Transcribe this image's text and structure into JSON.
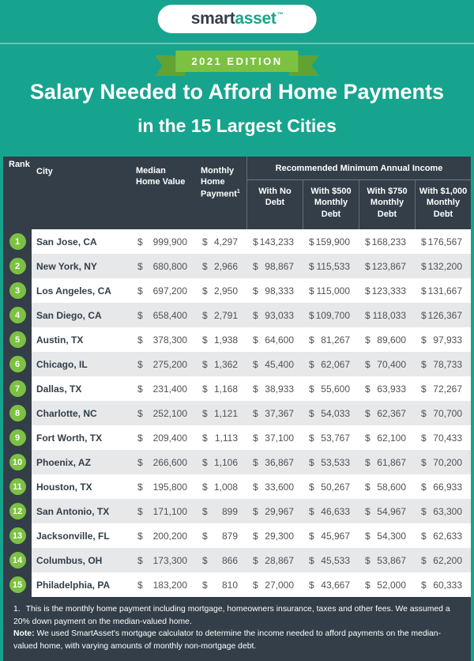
{
  "brand": {
    "smart": "smart",
    "asset": "asset",
    "trademark": "™"
  },
  "edition_badge": "2021 EDITION",
  "title": {
    "line1": "Salary Needed to Afford Home Payments",
    "line2": "in the 15 Largest Cities"
  },
  "table": {
    "currency_symbol": "$",
    "headers": {
      "rank": "Rank",
      "city": "City",
      "median_home_value": "Median Home Value",
      "monthly_home_payment": "Monthly Home Payment",
      "footnote_marker": "1",
      "income_group": "Recommended Minimum Annual Income",
      "sub": [
        "With No Debt",
        "With $500 Monthly Debt",
        "With $750 Monthly Debt",
        "With $1,000 Monthly Debt"
      ]
    },
    "rows": [
      {
        "rank": "1",
        "city": "San Jose, CA",
        "median": "999,900",
        "payment": "4,297",
        "no_debt": "143,233",
        "debt_500": "159,900",
        "debt_750": "168,233",
        "debt_1000": "176,567"
      },
      {
        "rank": "2",
        "city": "New York, NY",
        "median": "680,800",
        "payment": "2,966",
        "no_debt": "98,867",
        "debt_500": "115,533",
        "debt_750": "123,867",
        "debt_1000": "132,200"
      },
      {
        "rank": "3",
        "city": "Los Angeles, CA",
        "median": "697,200",
        "payment": "2,950",
        "no_debt": "98,333",
        "debt_500": "115,000",
        "debt_750": "123,333",
        "debt_1000": "131,667"
      },
      {
        "rank": "4",
        "city": "San Diego, CA",
        "median": "658,400",
        "payment": "2,791",
        "no_debt": "93,033",
        "debt_500": "109,700",
        "debt_750": "118,033",
        "debt_1000": "126,367"
      },
      {
        "rank": "5",
        "city": "Austin, TX",
        "median": "378,300",
        "payment": "1,938",
        "no_debt": "64,600",
        "debt_500": "81,267",
        "debt_750": "89,600",
        "debt_1000": "97,933"
      },
      {
        "rank": "6",
        "city": "Chicago, IL",
        "median": "275,200",
        "payment": "1,362",
        "no_debt": "45,400",
        "debt_500": "62,067",
        "debt_750": "70,400",
        "debt_1000": "78,733"
      },
      {
        "rank": "7",
        "city": "Dallas, TX",
        "median": "231,400",
        "payment": "1,168",
        "no_debt": "38,933",
        "debt_500": "55,600",
        "debt_750": "63,933",
        "debt_1000": "72,267"
      },
      {
        "rank": "8",
        "city": "Charlotte, NC",
        "median": "252,100",
        "payment": "1,121",
        "no_debt": "37,367",
        "debt_500": "54,033",
        "debt_750": "62,367",
        "debt_1000": "70,700"
      },
      {
        "rank": "9",
        "city": "Fort Worth, TX",
        "median": "209,400",
        "payment": "1,113",
        "no_debt": "37,100",
        "debt_500": "53,767",
        "debt_750": "62,100",
        "debt_1000": "70,433"
      },
      {
        "rank": "10",
        "city": "Phoenix, AZ",
        "median": "266,600",
        "payment": "1,106",
        "no_debt": "36,867",
        "debt_500": "53,533",
        "debt_750": "61,867",
        "debt_1000": "70,200"
      },
      {
        "rank": "11",
        "city": "Houston, TX",
        "median": "195,800",
        "payment": "1,008",
        "no_debt": "33,600",
        "debt_500": "50,267",
        "debt_750": "58,600",
        "debt_1000": "66,933"
      },
      {
        "rank": "12",
        "city": "San Antonio, TX",
        "median": "171,100",
        "payment": "899",
        "no_debt": "29,967",
        "debt_500": "46,633",
        "debt_750": "54,967",
        "debt_1000": "63,300"
      },
      {
        "rank": "13",
        "city": "Jacksonville, FL",
        "median": "200,200",
        "payment": "879",
        "no_debt": "29,300",
        "debt_500": "45,967",
        "debt_750": "54,300",
        "debt_1000": "62,633"
      },
      {
        "rank": "14",
        "city": "Columbus, OH",
        "median": "173,300",
        "payment": "866",
        "no_debt": "28,867",
        "debt_500": "45,533",
        "debt_750": "53,867",
        "debt_1000": "62,200"
      },
      {
        "rank": "15",
        "city": "Philadelphia, PA",
        "median": "183,200",
        "payment": "810",
        "no_debt": "27,000",
        "debt_500": "43,667",
        "debt_750": "52,000",
        "debt_1000": "60,333"
      }
    ]
  },
  "footnotes": {
    "note1_num": "1.",
    "note1_text": "This is the monthly home payment including mortgage, homeowners insurance, taxes and other fees. We assumed a 20% down payment on the median-valued home.",
    "note2_label": "Note:",
    "note2_text": "We used SmartAsset's mortgage calculator to determine the income needed to afford payments on the median-valued home, with varying amounts of monthly non-mortgage debt."
  },
  "colors": {
    "background_teal": "#17a48e",
    "header_navy": "#333e48",
    "accent_green": "#7cc142",
    "ribbon_dark_green": "#61a233",
    "row_alt_gray": "#e7e8ea"
  },
  "chart_data": {
    "type": "table",
    "title": "Salary Needed to Afford Home Payments in the 15 Largest Cities",
    "subtitle": "2021 EDITION",
    "column_group": {
      "label": "Recommended Minimum Annual Income",
      "spans": [
        "With No Debt",
        "With $500 Monthly Debt",
        "With $750 Monthly Debt",
        "With $1,000 Monthly Debt"
      ]
    },
    "columns": [
      "Rank",
      "City",
      "Median Home Value",
      "Monthly Home Payment",
      "With No Debt",
      "With $500 Monthly Debt",
      "With $750 Monthly Debt",
      "With $1,000 Monthly Debt"
    ],
    "rows": [
      [
        1,
        "San Jose, CA",
        999900,
        4297,
        143233,
        159900,
        168233,
        176567
      ],
      [
        2,
        "New York, NY",
        680800,
        2966,
        98867,
        115533,
        123867,
        132200
      ],
      [
        3,
        "Los Angeles, CA",
        697200,
        2950,
        98333,
        115000,
        123333,
        131667
      ],
      [
        4,
        "San Diego, CA",
        658400,
        2791,
        93033,
        109700,
        118033,
        126367
      ],
      [
        5,
        "Austin, TX",
        378300,
        1938,
        64600,
        81267,
        89600,
        97933
      ],
      [
        6,
        "Chicago, IL",
        275200,
        1362,
        45400,
        62067,
        70400,
        78733
      ],
      [
        7,
        "Dallas, TX",
        231400,
        1168,
        38933,
        55600,
        63933,
        72267
      ],
      [
        8,
        "Charlotte, NC",
        252100,
        1121,
        37367,
        54033,
        62367,
        70700
      ],
      [
        9,
        "Fort Worth, TX",
        209400,
        1113,
        37100,
        53767,
        62100,
        70433
      ],
      [
        10,
        "Phoenix, AZ",
        266600,
        1106,
        36867,
        53533,
        61867,
        70200
      ],
      [
        11,
        "Houston, TX",
        195800,
        1008,
        33600,
        50267,
        58600,
        66933
      ],
      [
        12,
        "San Antonio, TX",
        171100,
        899,
        29967,
        46633,
        54967,
        63300
      ],
      [
        13,
        "Jacksonville, FL",
        200200,
        879,
        29300,
        45967,
        54300,
        62633
      ],
      [
        14,
        "Columbus, OH",
        173300,
        866,
        28867,
        45533,
        53867,
        62200
      ],
      [
        15,
        "Philadelphia, PA",
        183200,
        810,
        27000,
        43667,
        52000,
        60333
      ]
    ]
  }
}
